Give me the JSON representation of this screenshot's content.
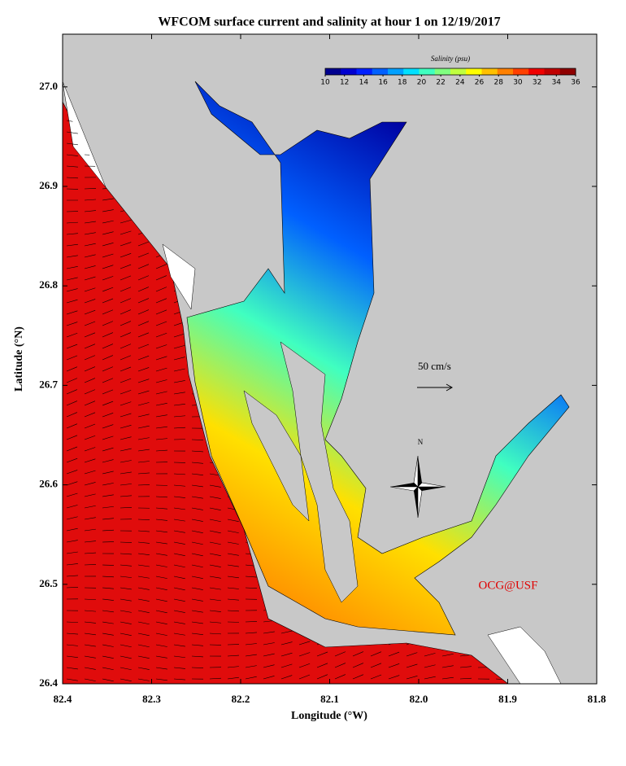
{
  "title": "WFCOM surface current and salinity at hour 1 on 12/19/2017",
  "map": {
    "xlabel": "Longitude (°W)",
    "ylabel": "Latitude (°N)",
    "xlim": [
      82.4,
      81.8
    ],
    "ylim": [
      26.4,
      27.053
    ],
    "xticks": [
      82.4,
      82.3,
      82.2,
      82.1,
      {
        "value": 82.0,
        "label": "82.0"
      },
      81.9,
      81.8
    ],
    "yticks": [
      26.4,
      26.5,
      26.6,
      26.7,
      26.8,
      26.9,
      {
        "value": 27.0,
        "label": "27.0"
      }
    ],
    "colorbar": {
      "label": "Salinity (psu)",
      "lim": [
        10,
        36
      ],
      "ticks": [
        10,
        12,
        14,
        16,
        18,
        20,
        22,
        24,
        26,
        28,
        30,
        32,
        34,
        36
      ],
      "colors": [
        "#00008f",
        "#0000d0",
        "#0020ff",
        "#0060ff",
        "#00a0ff",
        "#00e0ff",
        "#40ffc0",
        "#80ff80",
        "#c0ff40",
        "#ffff00",
        "#ffc000",
        "#ff8000",
        "#ff4000",
        "#f00000",
        "#c00000",
        "#8f0000"
      ]
    },
    "scale_label": "50 cm/s",
    "north_label": "N",
    "credit": "OCG@USF"
  }
}
